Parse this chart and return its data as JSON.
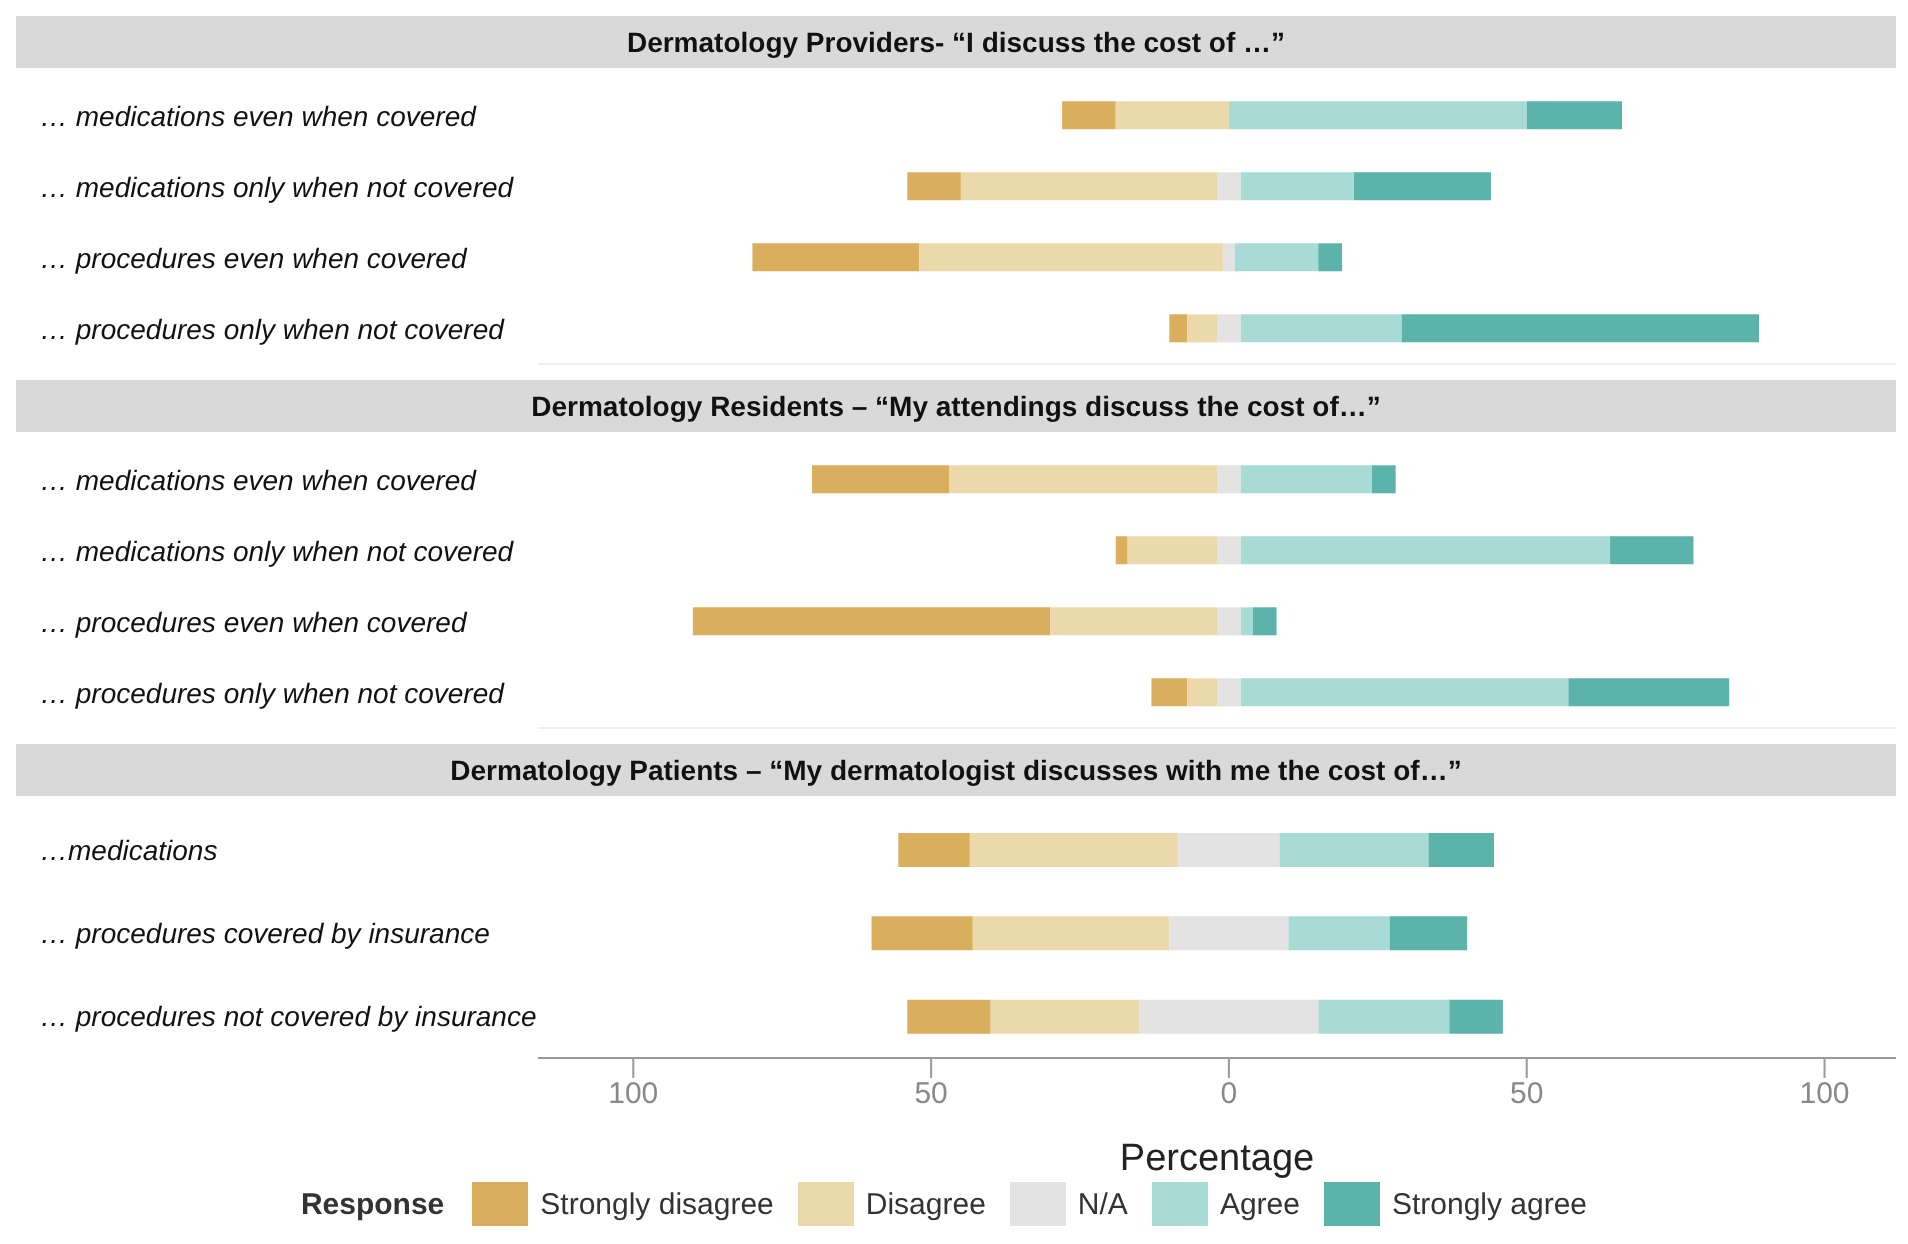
{
  "chart_data": [
    {
      "type": "bar",
      "orientation": "horizontal",
      "title": "Dermatology Providers- “I discuss the cost of …”",
      "categories": [
        "… medications even when covered",
        "… medications only when not covered",
        "… procedures even when covered",
        "… procedures only when not covered"
      ],
      "xlim": [
        -116,
        112
      ],
      "tick_labels": "y",
      "legend": false,
      "series": [
        {
          "color": "#d9ae5c",
          "values": [
            9,
            9,
            28,
            3
          ],
          "base": [
            -28,
            -54,
            -80,
            -10
          ]
        },
        {
          "color": "#ecd9ab",
          "values": [
            19,
            43,
            51,
            5
          ],
          "base": [
            -19,
            -45,
            -52,
            -7
          ]
        },
        {
          "color": "#e3e3e3",
          "values": [
            null,
            4,
            2,
            4
          ],
          "base": [
            null,
            -2,
            -1,
            -2
          ]
        },
        {
          "color": "#a9dbd6",
          "values": [
            50,
            19,
            14,
            27
          ],
          "base": [
            0,
            2,
            1,
            2
          ]
        },
        {
          "color": "#5cb3a9",
          "values": [
            16,
            23,
            4,
            60
          ],
          "base": [
            50,
            21,
            15,
            29
          ]
        }
      ]
    },
    {
      "type": "bar",
      "orientation": "horizontal",
      "title": "Dermatology Residents – “My attendings discuss the cost of…”",
      "categories": [
        "… medications even when covered",
        "… medications only when not covered",
        "… procedures even when covered",
        "… procedures only when not covered"
      ],
      "xlim": [
        -116,
        112
      ],
      "tick_labels": "y",
      "legend": false,
      "series": [
        {
          "color": "#d9ae5c",
          "values": [
            23,
            2,
            60,
            6
          ],
          "base": [
            -70,
            -19,
            -90,
            -13
          ]
        },
        {
          "color": "#ecd9ab",
          "values": [
            45,
            15,
            28,
            5
          ],
          "base": [
            -47,
            -17,
            -30,
            -7
          ]
        },
        {
          "color": "#e3e3e3",
          "values": [
            4,
            4,
            4,
            4
          ],
          "base": [
            -2,
            -2,
            -2,
            -2
          ]
        },
        {
          "color": "#a9dbd6",
          "values": [
            22,
            62,
            2,
            55
          ],
          "base": [
            2,
            2,
            2,
            2
          ]
        },
        {
          "color": "#5cb3a9",
          "values": [
            4,
            14,
            4,
            27
          ],
          "base": [
            24,
            64,
            4,
            57
          ]
        }
      ]
    },
    {
      "type": "bar",
      "orientation": "horizontal",
      "title": "Dermatology Patients – “My dermatologist discusses with me the cost of…”",
      "categories": [
        "…medications",
        "… procedures covered by insurance",
        "… procedures not covered by insurance"
      ],
      "xlabel": "Percentage",
      "legend_title": "Response",
      "xlim": [
        -116,
        112
      ],
      "xticks": [
        {
          "value": -100,
          "label": "100"
        },
        {
          "value": -50,
          "label": "50"
        },
        0,
        50,
        100
      ],
      "legend": "bottom",
      "series": [
        {
          "name": "Strongly disagree",
          "color": "#d9ae5c",
          "values": [
            12,
            17,
            14
          ],
          "base": [
            -55.5,
            -60,
            -54
          ]
        },
        {
          "name": "Disagree",
          "color": "#ecd9ab",
          "values": [
            35,
            33,
            25
          ],
          "base": [
            -43.5,
            -43,
            -40
          ]
        },
        {
          "name": "N/A",
          "color": "#e3e3e3",
          "values": [
            17,
            20,
            30
          ],
          "base": [
            -8.5,
            -10,
            -15
          ]
        },
        {
          "name": "Agree",
          "color": "#a9dbd6",
          "values": [
            25,
            17,
            22
          ],
          "base": [
            8.5,
            10,
            15
          ]
        },
        {
          "name": "Strongly agree",
          "color": "#5cb3a9",
          "values": [
            11,
            13,
            9
          ],
          "base": [
            33.5,
            27,
            37
          ]
        }
      ]
    }
  ]
}
